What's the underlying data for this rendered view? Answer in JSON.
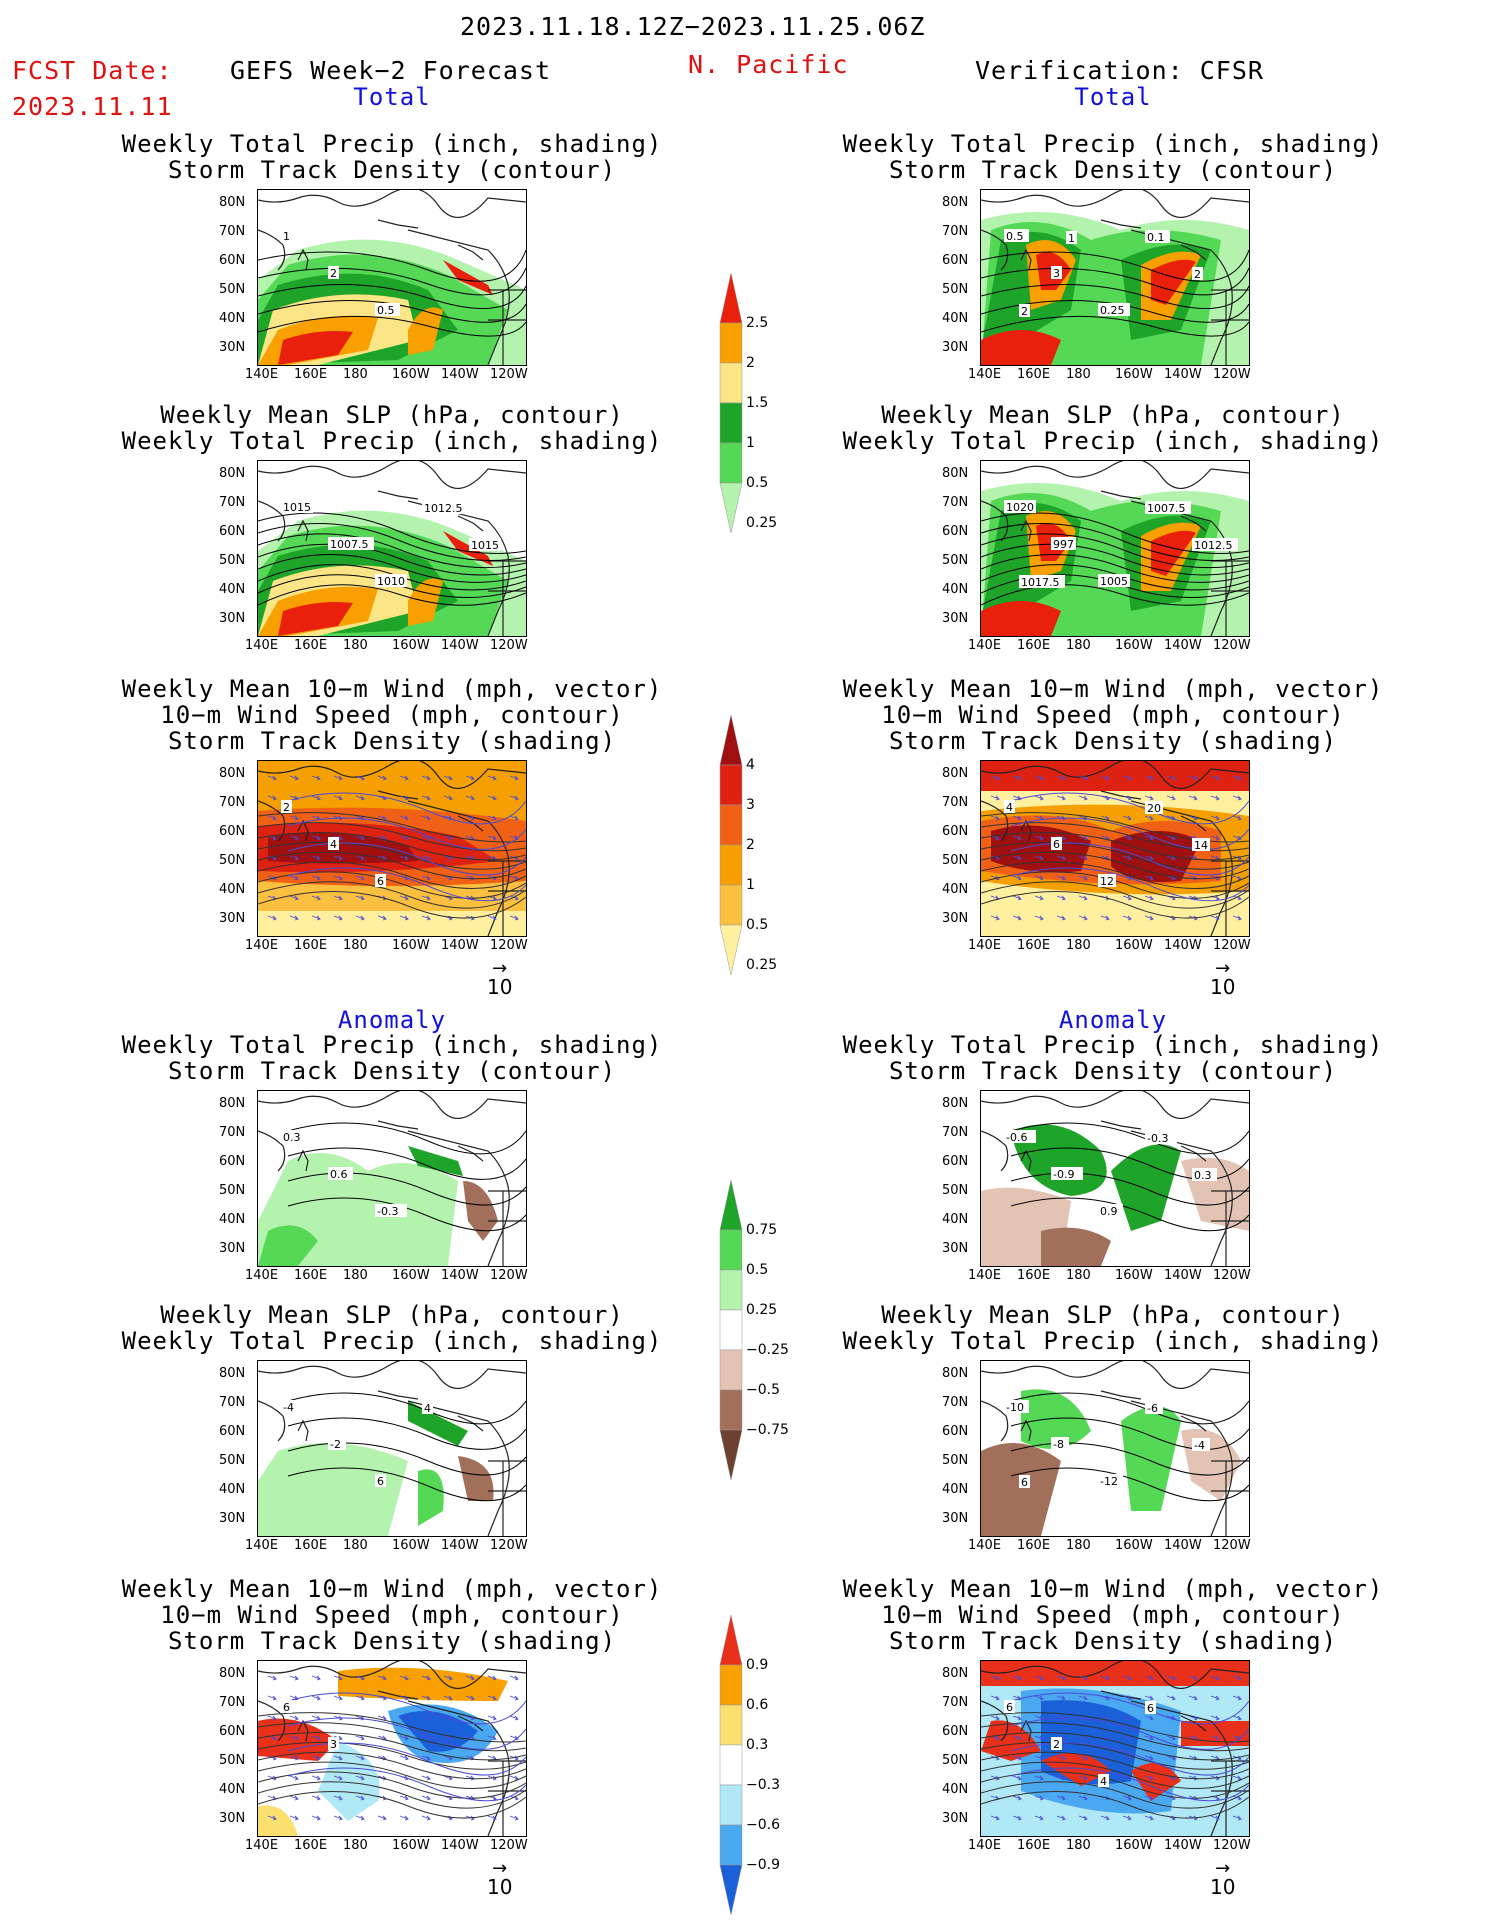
{
  "header": {
    "period": "2023.11.18.12Z−2023.11.25.06Z",
    "fcst_label": "FCST Date:",
    "fcst_date": "2023.11.11",
    "left_title": "GEFS Week−2 Forecast",
    "region": "N. Pacific",
    "right_title": "Verification: CFSR"
  },
  "sections": {
    "total": "Total",
    "anomaly": "Anomaly"
  },
  "panel_titles": {
    "precip_track": [
      "Weekly Total Precip (inch, shading)",
      "Storm Track Density (contour)"
    ],
    "slp_precip": [
      "Weekly Mean SLP (hPa, contour)",
      "Weekly Total Precip (inch, shading)"
    ],
    "wind_track": [
      "Weekly Mean 10−m Wind (mph, vector)",
      "10−m Wind Speed (mph, contour)",
      "Storm Track Density (shading)"
    ]
  },
  "axes": {
    "lat": [
      "80N",
      "70N",
      "60N",
      "50N",
      "40N",
      "30N"
    ],
    "lon": [
      "140E",
      "160E",
      "180",
      "160W",
      "140W",
      "120W"
    ]
  },
  "vector_ref": "10",
  "colorbars": {
    "total_precip": {
      "labels": [
        "2.5",
        "2",
        "1.5",
        "1",
        "0.5",
        "0.25"
      ],
      "colors": [
        "#e8200c",
        "#f7a000",
        "#fbe586",
        "#1fa42a",
        "#55d855",
        "#b4f3ae"
      ]
    },
    "total_track": {
      "labels": [
        "4",
        "3",
        "2",
        "1",
        "0.5",
        "0.25"
      ],
      "colors": [
        "#a01010",
        "#dd2211",
        "#f06015",
        "#f5a000",
        "#fbc040",
        "#fff0a0"
      ]
    },
    "anom_precip": {
      "labels": [
        "0.75",
        "0.5",
        "0.25",
        "−0.25",
        "−0.5",
        "−0.75"
      ],
      "colors": [
        "#1fa42a",
        "#55d855",
        "#b4f3ae",
        "#ffffff",
        "#e3c3b3",
        "#a2705a",
        "#6e4030"
      ]
    },
    "anom_track": {
      "labels": [
        "0.9",
        "0.6",
        "0.3",
        "−0.3",
        "−0.6",
        "−0.9"
      ],
      "colors": [
        "#e8301a",
        "#f7a000",
        "#fbe070",
        "#ffffff",
        "#b0e8f5",
        "#4aa8f0",
        "#1a60d8"
      ]
    }
  },
  "contour_labels": {
    "fp_total_precip": [
      "1",
      "2",
      "0.5"
    ],
    "vf_total_precip": [
      "0.5",
      "3",
      "0.25",
      "0.1",
      "2",
      "2",
      "1"
    ],
    "fp_total_slp": [
      "1015",
      "1007.5",
      "1010",
      "1012.5",
      "1015"
    ],
    "vf_total_slp": [
      "1020",
      "997",
      "1005",
      "1007.5",
      "1012.5",
      "1017.5"
    ],
    "fp_total_wind": [
      "2",
      "4",
      "6"
    ],
    "vf_total_wind": [
      "4",
      "6",
      "12",
      "20",
      "14"
    ],
    "fp_anom_precip": [
      "0.3",
      "0.6",
      "-0.3"
    ],
    "vf_anom_precip": [
      "-0.6",
      "-0.9",
      "0.9",
      "-0.3",
      "0.3"
    ],
    "fp_anom_slp": [
      "-4",
      "-2",
      "6",
      "4"
    ],
    "vf_anom_slp": [
      "-10",
      "-8",
      "-12",
      "-6",
      "-4",
      "6"
    ],
    "fp_anom_wind": [
      "6",
      "3"
    ],
    "vf_anom_wind": [
      "6",
      "2",
      "4",
      "6"
    ]
  },
  "map_colors": {
    "coast": "#222222",
    "contour": "#000000",
    "wind_vector": "#4a4ad8",
    "land": "#ffffff"
  }
}
